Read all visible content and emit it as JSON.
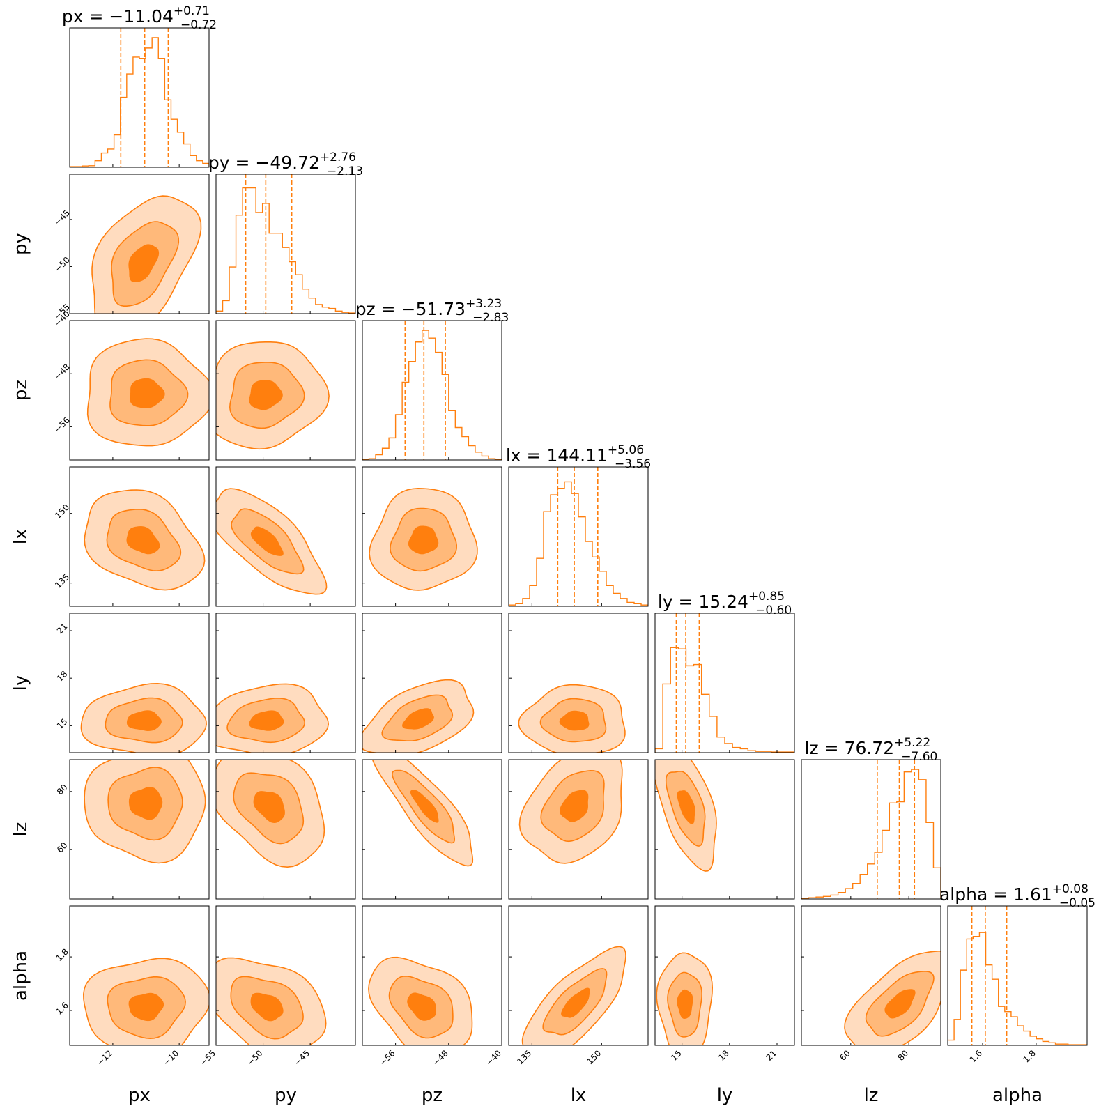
{
  "chart_data": {
    "type": "corner",
    "color": "#ff7f0e",
    "fill_colors": [
      "#ffdcbf",
      "#ffb97a",
      "#ff7f0e"
    ],
    "parameters": [
      {
        "name": "px",
        "median": "−11.04",
        "plus": "+0.71",
        "minus": "−0.72",
        "range": [
          -13.3,
          -9.1
        ],
        "ticks": [
          -12,
          -10
        ],
        "tick_labels": [
          "−12",
          "−10"
        ],
        "median_value": -11.04,
        "lo_value": -11.76,
        "hi_value": -10.33
      },
      {
        "name": "py",
        "median": "−49.72",
        "plus": "+2.76",
        "minus": "−2.13",
        "range": [
          -55,
          -40.2
        ],
        "ticks": [
          -55,
          -50,
          -45
        ],
        "tick_labels": [
          "−55",
          "−50",
          "−45"
        ],
        "median_value": -49.72,
        "lo_value": -51.85,
        "hi_value": -46.96
      },
      {
        "name": "pz",
        "median": "−51.73",
        "plus": "+3.23",
        "minus": "−2.83",
        "range": [
          -61,
          -40
        ],
        "ticks": [
          -56,
          -48,
          -40
        ],
        "tick_labels": [
          "−56",
          "−48",
          "−40"
        ],
        "median_value": -51.73,
        "lo_value": -54.56,
        "hi_value": -48.5
      },
      {
        "name": "lx",
        "median": "144.11",
        "plus": "+5.06",
        "minus": "−3.56",
        "range": [
          130,
          160
        ],
        "ticks": [
          135,
          150
        ],
        "tick_labels": [
          "135",
          "150"
        ],
        "median_value": 144.11,
        "lo_value": 140.55,
        "hi_value": 149.17
      },
      {
        "name": "ly",
        "median": "15.24",
        "plus": "+0.85",
        "minus": "−0.60",
        "range": [
          13.3,
          22.1
        ],
        "ticks": [
          15,
          18,
          21
        ],
        "tick_labels": [
          "15",
          "18",
          "21"
        ],
        "median_value": 15.24,
        "lo_value": 14.64,
        "hi_value": 16.09
      },
      {
        "name": "lz",
        "median": "76.72",
        "plus": "+5.22",
        "minus": "−7.60",
        "range": [
          43,
          91
        ],
        "ticks": [
          60,
          80
        ],
        "tick_labels": [
          "60",
          "80"
        ],
        "median_value": 76.72,
        "lo_value": 69.12,
        "hi_value": 81.94
      },
      {
        "name": "alpha",
        "median": "1.61",
        "plus": "+0.08",
        "minus": "−0.05",
        "range": [
          1.47,
          1.99
        ],
        "ticks": [
          1.6,
          1.8
        ],
        "tick_labels": [
          "1.6",
          "1.8"
        ],
        "median_value": 1.61,
        "lo_value": 1.56,
        "hi_value": 1.69
      }
    ],
    "histograms": [
      [
        0.005,
        0.005,
        0.01,
        0.012,
        0.05,
        0.11,
        0.14,
        0.25,
        0.54,
        0.72,
        0.85,
        0.84,
        0.92,
        1.0,
        0.84,
        0.52,
        0.37,
        0.27,
        0.18,
        0.09,
        0.05,
        0.03
      ],
      [
        0.02,
        0.1,
        0.36,
        0.76,
        0.97,
        0.97,
        0.78,
        0.85,
        0.62,
        0.62,
        0.51,
        0.4,
        0.3,
        0.19,
        0.12,
        0.07,
        0.05,
        0.04,
        0.02,
        0.01,
        0.005
      ],
      [
        0.005,
        0.01,
        0.04,
        0.09,
        0.17,
        0.35,
        0.6,
        0.76,
        0.91,
        1.0,
        0.94,
        0.83,
        0.66,
        0.38,
        0.25,
        0.18,
        0.11,
        0.06,
        0.03,
        0.01,
        0.005
      ],
      [
        0.01,
        0.02,
        0.06,
        0.16,
        0.37,
        0.73,
        0.86,
        0.91,
        0.96,
        0.87,
        0.69,
        0.5,
        0.38,
        0.27,
        0.16,
        0.1,
        0.06,
        0.03,
        0.02,
        0.01
      ],
      [
        0.03,
        0.53,
        0.81,
        0.8,
        0.67,
        0.68,
        0.45,
        0.28,
        0.12,
        0.07,
        0.04,
        0.03,
        0.015,
        0.01,
        0.01,
        0.005,
        0.005,
        0.005
      ],
      [
        0.005,
        0.01,
        0.015,
        0.02,
        0.03,
        0.05,
        0.08,
        0.12,
        0.19,
        0.27,
        0.36,
        0.53,
        0.74,
        0.75,
        0.98,
        1.0,
        0.92,
        0.59,
        0.24
      ],
      [
        0.04,
        0.2,
        0.58,
        0.82,
        0.84,
        0.87,
        0.62,
        0.51,
        0.3,
        0.26,
        0.22,
        0.15,
        0.11,
        0.07,
        0.05,
        0.03,
        0.02,
        0.01,
        0.01,
        0.005,
        0.005,
        0.005
      ]
    ],
    "contours": [
      {
        "row": 1,
        "col": 0,
        "cx": -11.1,
        "cy": -49.6,
        "sx": 0.62,
        "sy": 2.8,
        "rho": 0.45
      },
      {
        "row": 2,
        "col": 0,
        "cx": -11.0,
        "cy": -51.0,
        "sx": 0.72,
        "sy": 3.1,
        "rho": 0.0
      },
      {
        "row": 2,
        "col": 1,
        "cx": -49.8,
        "cy": -51.2,
        "sx": 2.4,
        "sy": 3.1,
        "rho": 0.08
      },
      {
        "row": 3,
        "col": 0,
        "cx": -11.1,
        "cy": 144.2,
        "sx": 0.68,
        "sy": 4.1,
        "rho": -0.3
      },
      {
        "row": 3,
        "col": 1,
        "cx": -49.6,
        "cy": 144.0,
        "sx": 2.3,
        "sy": 4.3,
        "rho": -0.7
      },
      {
        "row": 3,
        "col": 2,
        "cx": -51.8,
        "cy": 144.2,
        "sx": 3.0,
        "sy": 4.2,
        "rho": 0.05
      },
      {
        "row": 4,
        "col": 0,
        "cx": -11.05,
        "cy": 15.3,
        "sx": 0.72,
        "sy": 0.85,
        "rho": 0.0
      },
      {
        "row": 4,
        "col": 1,
        "cx": -49.6,
        "cy": 15.3,
        "sx": 2.5,
        "sy": 0.85,
        "rho": 0.1
      },
      {
        "row": 4,
        "col": 2,
        "cx": -52.5,
        "cy": 15.4,
        "sx": 3.2,
        "sy": 0.9,
        "rho": 0.45
      },
      {
        "row": 4,
        "col": 3,
        "cx": 144.3,
        "cy": 15.3,
        "sx": 4.3,
        "sy": 0.85,
        "rho": 0.0
      },
      {
        "row": 5,
        "col": 0,
        "cx": -11.0,
        "cy": 76.0,
        "sx": 0.7,
        "sy": 7.5,
        "rho": 0.0
      },
      {
        "row": 5,
        "col": 1,
        "cx": -49.3,
        "cy": 75.0,
        "sx": 2.3,
        "sy": 7.5,
        "rho": -0.35
      },
      {
        "row": 5,
        "col": 2,
        "cx": -51.5,
        "cy": 75.0,
        "sx": 2.9,
        "sy": 7.8,
        "rho": -0.85
      },
      {
        "row": 5,
        "col": 3,
        "cx": 144.3,
        "cy": 75.0,
        "sx": 4.2,
        "sy": 7.5,
        "rho": 0.3
      },
      {
        "row": 5,
        "col": 4,
        "cx": 15.3,
        "cy": 75.0,
        "sx": 0.75,
        "sy": 8.0,
        "rho": -0.55
      },
      {
        "row": 6,
        "col": 0,
        "cx": -11.0,
        "cy": 1.615,
        "sx": 0.72,
        "sy": 0.07,
        "rho": 0.05
      },
      {
        "row": 6,
        "col": 1,
        "cx": -49.6,
        "cy": 1.615,
        "sx": 2.4,
        "sy": 0.07,
        "rho": -0.35
      },
      {
        "row": 6,
        "col": 2,
        "cx": -52.0,
        "cy": 1.615,
        "sx": 3.0,
        "sy": 0.07,
        "rho": -0.35
      },
      {
        "row": 6,
        "col": 3,
        "cx": 144.5,
        "cy": 1.625,
        "sx": 4.2,
        "sy": 0.075,
        "rho": 0.72
      },
      {
        "row": 6,
        "col": 4,
        "cx": 15.2,
        "cy": 1.625,
        "sx": 0.65,
        "sy": 0.075,
        "rho": 0.0
      },
      {
        "row": 6,
        "col": 5,
        "cx": 77.0,
        "cy": 1.625,
        "sx": 7.0,
        "sy": 0.075,
        "rho": 0.6
      }
    ]
  }
}
